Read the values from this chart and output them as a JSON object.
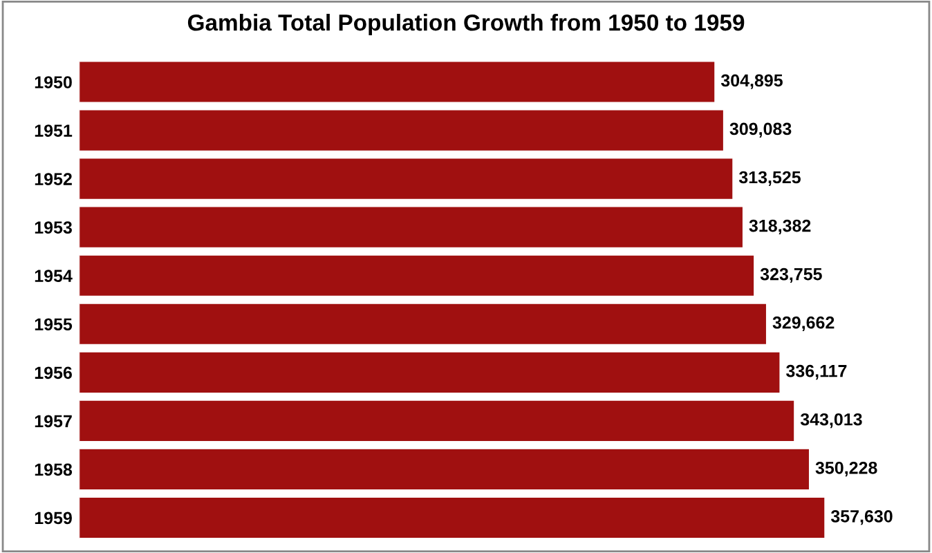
{
  "chart_data": {
    "type": "bar",
    "orientation": "horizontal",
    "title": "Gambia Total Population Growth from 1950 to 1959",
    "categories": [
      "1950",
      "1951",
      "1952",
      "1953",
      "1954",
      "1955",
      "1956",
      "1957",
      "1958",
      "1959"
    ],
    "values": [
      304895,
      309083,
      313525,
      318382,
      323755,
      329662,
      336117,
      343013,
      350228,
      357630
    ],
    "value_labels": [
      "304,895",
      "309,083",
      "313,525",
      "318,382",
      "323,755",
      "329,662",
      "336,117",
      "343,013",
      "350,228",
      "357,630"
    ],
    "color": "#a01010",
    "tick_labels": "y",
    "grid": false,
    "legend": false
  }
}
